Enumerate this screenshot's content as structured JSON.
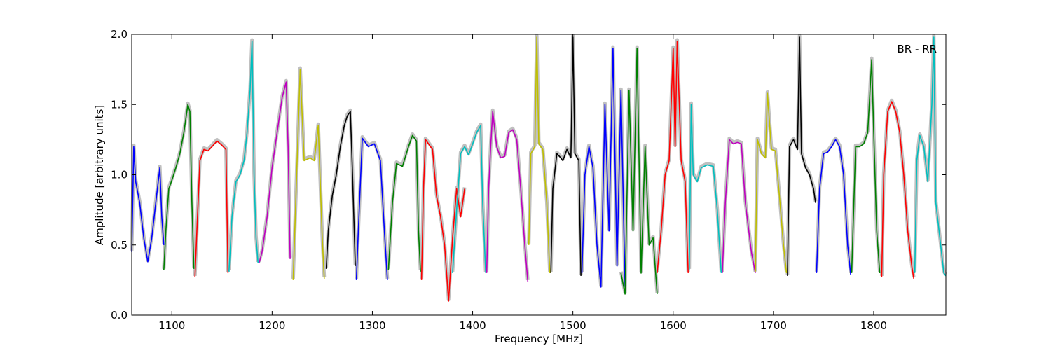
{
  "chart_data": {
    "type": "line",
    "title": "",
    "xlabel": "Frequency [MHz]",
    "ylabel": "Amplitude [arbitrary units]",
    "annotation": "BR - RR",
    "xlim": [
      1060,
      1872
    ],
    "ylim": [
      0.0,
      2.0
    ],
    "xticks": [
      1100,
      1200,
      1300,
      1400,
      1500,
      1600,
      1700,
      1800
    ],
    "xtick_labels": [
      "1100",
      "1200",
      "1300",
      "1400",
      "1500",
      "1600",
      "1700",
      "1800"
    ],
    "yticks": [
      0.0,
      0.5,
      1.0,
      1.5,
      2.0
    ],
    "ytick_labels": [
      "0.0",
      "0.5",
      "1.0",
      "1.5",
      "2.0"
    ],
    "grid": false,
    "reference_color": "#c0c0c0",
    "series": [
      {
        "color": "#0000ff",
        "x": [
          1060,
          1062,
          1064,
          1068,
          1072,
          1076,
          1080,
          1084,
          1088,
          1090,
          1092
        ],
        "y": [
          0.45,
          1.2,
          0.95,
          0.8,
          0.55,
          0.38,
          0.55,
          0.8,
          1.05,
          0.7,
          0.5
        ]
      },
      {
        "color": "#008000",
        "x": [
          1092,
          1094,
          1097,
          1100,
          1104,
          1108,
          1112,
          1116,
          1118,
          1120,
          1122
        ],
        "y": [
          0.32,
          0.6,
          0.9,
          0.96,
          1.05,
          1.15,
          1.3,
          1.5,
          1.45,
          0.8,
          0.33
        ]
      },
      {
        "color": "#ff0000",
        "x": [
          1123,
          1125,
          1128,
          1132,
          1136,
          1140,
          1145,
          1150,
          1154,
          1156
        ],
        "y": [
          0.27,
          0.6,
          1.1,
          1.18,
          1.17,
          1.2,
          1.24,
          1.21,
          1.18,
          0.3
        ]
      },
      {
        "color": "#00bfbf",
        "x": [
          1157,
          1160,
          1164,
          1168,
          1172,
          1175,
          1178,
          1180,
          1182,
          1184,
          1186
        ],
        "y": [
          0.31,
          0.7,
          0.95,
          1.0,
          1.1,
          1.3,
          1.6,
          1.95,
          1.0,
          0.55,
          0.37
        ]
      },
      {
        "color": "#bf00bf",
        "x": [
          1187,
          1190,
          1195,
          1200,
          1205,
          1210,
          1214,
          1216,
          1218
        ],
        "y": [
          0.37,
          0.45,
          0.7,
          1.05,
          1.3,
          1.55,
          1.66,
          1.2,
          0.4
        ]
      },
      {
        "color": "#bfbf00",
        "x": [
          1221,
          1224,
          1228,
          1232,
          1238,
          1242,
          1246,
          1250,
          1252
        ],
        "y": [
          0.25,
          0.9,
          1.75,
          1.1,
          1.12,
          1.1,
          1.35,
          0.55,
          0.26
        ]
      },
      {
        "color": "#000000",
        "x": [
          1254,
          1256,
          1260,
          1264,
          1268,
          1272,
          1275,
          1278,
          1280,
          1283
        ],
        "y": [
          0.33,
          0.6,
          0.85,
          1.0,
          1.2,
          1.35,
          1.42,
          1.45,
          1.05,
          0.35
        ]
      },
      {
        "color": "#0000ff",
        "x": [
          1284,
          1286,
          1290,
          1296,
          1302,
          1308,
          1312,
          1315
        ],
        "y": [
          0.25,
          0.6,
          1.26,
          1.2,
          1.22,
          1.1,
          0.6,
          0.25
        ]
      },
      {
        "color": "#008000",
        "x": [
          1316,
          1320,
          1324,
          1330,
          1336,
          1340,
          1344,
          1346,
          1348
        ],
        "y": [
          0.32,
          0.8,
          1.08,
          1.06,
          1.2,
          1.28,
          1.24,
          0.6,
          0.31
        ]
      },
      {
        "color": "#ff0000",
        "x": [
          1349,
          1351,
          1353,
          1356,
          1360,
          1364,
          1368,
          1372,
          1376,
          1380,
          1384,
          1388,
          1392
        ],
        "y": [
          0.25,
          0.9,
          1.25,
          1.22,
          1.18,
          0.85,
          0.7,
          0.5,
          0.1,
          0.55,
          0.9,
          0.7,
          0.9
        ]
      },
      {
        "color": "#00bfbf",
        "x": [
          1380,
          1384,
          1388,
          1392,
          1396,
          1400,
          1404,
          1408,
          1410,
          1413
        ],
        "y": [
          0.3,
          0.75,
          1.15,
          1.2,
          1.14,
          1.22,
          1.3,
          1.35,
          0.8,
          0.3
        ]
      },
      {
        "color": "#bf00bf",
        "x": [
          1414,
          1416,
          1418,
          1420,
          1424,
          1428,
          1432,
          1436,
          1440,
          1444,
          1448,
          1452,
          1455
        ],
        "y": [
          0.3,
          0.9,
          1.2,
          1.45,
          1.2,
          1.12,
          1.13,
          1.3,
          1.32,
          1.25,
          0.9,
          0.5,
          0.24
        ]
      },
      {
        "color": "#bfbf00",
        "x": [
          1456,
          1458,
          1462,
          1464,
          1466,
          1470,
          1474,
          1477
        ],
        "y": [
          0.5,
          1.15,
          1.2,
          1.98,
          1.22,
          1.18,
          0.8,
          0.3
        ]
      },
      {
        "color": "#000000",
        "x": [
          1478,
          1480,
          1484,
          1488,
          1490,
          1494,
          1498,
          1500,
          1502,
          1506,
          1508
        ],
        "y": [
          0.3,
          0.9,
          1.15,
          1.12,
          1.1,
          1.18,
          1.12,
          1.98,
          1.15,
          1.1,
          0.28
        ]
      },
      {
        "color": "#0000ff",
        "x": [
          1509,
          1512,
          1516,
          1520,
          1524,
          1528,
          1532,
          1536,
          1540,
          1544,
          1548,
          1552
        ],
        "y": [
          0.3,
          1.0,
          1.2,
          1.05,
          0.5,
          0.2,
          1.5,
          0.6,
          1.9,
          0.35,
          1.6,
          0.2
        ]
      },
      {
        "color": "#008000",
        "x": [
          1548,
          1552,
          1556,
          1560,
          1564,
          1568,
          1572,
          1576,
          1580,
          1584
        ],
        "y": [
          0.3,
          0.15,
          1.6,
          0.6,
          1.9,
          0.3,
          1.2,
          0.5,
          0.55,
          0.15
        ]
      },
      {
        "color": "#ff0000",
        "x": [
          1584,
          1588,
          1592,
          1596,
          1600,
          1602,
          1604,
          1608,
          1612,
          1615
        ],
        "y": [
          0.3,
          0.6,
          1.0,
          1.1,
          1.9,
          1.2,
          1.95,
          1.1,
          0.95,
          0.3
        ]
      },
      {
        "color": "#00bfbf",
        "x": [
          1616,
          1618,
          1620,
          1624,
          1628,
          1634,
          1640,
          1644,
          1648
        ],
        "y": [
          0.32,
          1.5,
          1.0,
          0.95,
          1.05,
          1.07,
          1.06,
          0.75,
          0.3
        ]
      },
      {
        "color": "#bf00bf",
        "x": [
          1649,
          1652,
          1656,
          1660,
          1664,
          1668,
          1672,
          1678,
          1682
        ],
        "y": [
          0.3,
          0.8,
          1.25,
          1.22,
          1.23,
          1.22,
          0.8,
          0.45,
          0.3
        ]
      },
      {
        "color": "#bfbf00",
        "x": [
          1682,
          1684,
          1688,
          1692,
          1694,
          1698,
          1702,
          1706,
          1710,
          1713
        ],
        "y": [
          0.31,
          1.25,
          1.15,
          1.12,
          1.58,
          1.18,
          1.17,
          0.85,
          0.5,
          0.3
        ]
      },
      {
        "color": "#000000",
        "x": [
          1714,
          1716,
          1720,
          1724,
          1726,
          1728,
          1732,
          1736,
          1740,
          1742
        ],
        "y": [
          0.28,
          1.2,
          1.25,
          1.18,
          1.98,
          1.15,
          1.05,
          1.0,
          0.9,
          0.8
        ]
      },
      {
        "color": "#0000ff",
        "x": [
          1743,
          1746,
          1750,
          1754,
          1758,
          1762,
          1766,
          1770,
          1774,
          1777
        ],
        "y": [
          0.3,
          0.9,
          1.15,
          1.16,
          1.2,
          1.25,
          1.2,
          1.0,
          0.5,
          0.29
        ]
      },
      {
        "color": "#008000",
        "x": [
          1778,
          1782,
          1786,
          1790,
          1794,
          1796,
          1798,
          1800,
          1803,
          1806
        ],
        "y": [
          0.3,
          1.2,
          1.2,
          1.22,
          1.3,
          1.55,
          1.82,
          1.3,
          0.6,
          0.3
        ]
      },
      {
        "color": "#ff0000",
        "x": [
          1808,
          1810,
          1814,
          1818,
          1822,
          1826,
          1830,
          1834,
          1838,
          1840
        ],
        "y": [
          0.27,
          1.0,
          1.45,
          1.52,
          1.45,
          1.3,
          1.0,
          0.6,
          0.35,
          0.26
        ]
      },
      {
        "color": "#00bfbf",
        "x": [
          1841,
          1843,
          1846,
          1850,
          1854,
          1858,
          1860,
          1862,
          1866,
          1870,
          1872
        ],
        "y": [
          0.3,
          1.1,
          1.28,
          1.2,
          0.95,
          1.5,
          1.98,
          0.8,
          0.55,
          0.3,
          0.28
        ]
      }
    ]
  }
}
